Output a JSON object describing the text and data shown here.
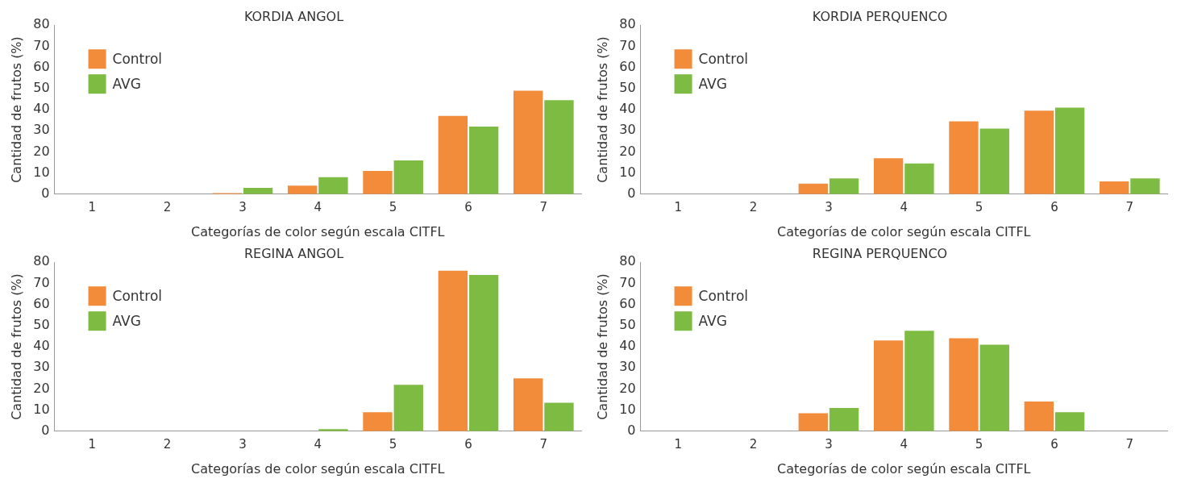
{
  "chart_data": [
    {
      "type": "bar",
      "title": "KORDIA ANGOL",
      "xlabel": "Categorías de color según escala CITFL",
      "ylabel": "Cantidad de frutos (%)",
      "categories": [
        "1",
        "2",
        "3",
        "4",
        "5",
        "6",
        "7"
      ],
      "series": [
        {
          "name": "Control",
          "color": "#f28c3b",
          "values": [
            0,
            0,
            0.5,
            4,
            11,
            37,
            49
          ]
        },
        {
          "name": "AVG",
          "color": "#7dbb42",
          "values": [
            0,
            0,
            3,
            8,
            16,
            32,
            44.5
          ]
        }
      ],
      "ylim": [
        0,
        80
      ],
      "yticks": [
        0,
        10,
        20,
        30,
        40,
        50,
        60,
        70,
        80
      ],
      "grid": false,
      "legend": "top left"
    },
    {
      "type": "bar",
      "title": "KORDIA PERQUENCO",
      "xlabel": "Categorías de color según escala CITFL",
      "ylabel": "Cantidad de frutos (%)",
      "categories": [
        "1",
        "2",
        "3",
        "4",
        "5",
        "6",
        "7"
      ],
      "series": [
        {
          "name": "Control",
          "color": "#f28c3b",
          "values": [
            0,
            0,
            5,
            17,
            34.5,
            39.5,
            6
          ]
        },
        {
          "name": "AVG",
          "color": "#7dbb42",
          "values": [
            0,
            0,
            7.5,
            14.5,
            31,
            41,
            7.5
          ]
        }
      ],
      "ylim": [
        0,
        80
      ],
      "yticks": [
        0,
        10,
        20,
        30,
        40,
        50,
        60,
        70,
        80
      ],
      "grid": false,
      "legend": "top left"
    },
    {
      "type": "bar",
      "title": "REGINA ANGOL",
      "xlabel": "Categorías de color según escala CITFL",
      "ylabel": "Cantidad de frutos (%)",
      "categories": [
        "1",
        "2",
        "3",
        "4",
        "5",
        "6",
        "7"
      ],
      "series": [
        {
          "name": "Control",
          "color": "#f28c3b",
          "values": [
            0,
            0,
            0,
            0,
            9,
            76,
            25
          ]
        },
        {
          "name": "AVG",
          "color": "#7dbb42",
          "values": [
            0,
            0,
            0,
            1,
            22,
            74,
            13.5
          ]
        }
      ],
      "ylim": [
        0,
        80
      ],
      "yticks": [
        0,
        10,
        20,
        30,
        40,
        50,
        60,
        70,
        80
      ],
      "grid": false,
      "legend": "top left"
    },
    {
      "type": "bar",
      "title": "REGINA PERQUENCO",
      "xlabel": "Categorías de color según escala CITFL",
      "ylabel": "Cantidad de frutos (%)",
      "categories": [
        "1",
        "2",
        "3",
        "4",
        "5",
        "6",
        "7"
      ],
      "series": [
        {
          "name": "Control",
          "color": "#f28c3b",
          "values": [
            0,
            0,
            8.5,
            43,
            44,
            14,
            0
          ]
        },
        {
          "name": "AVG",
          "color": "#7dbb42",
          "values": [
            0,
            0,
            11,
            47.5,
            41,
            9,
            0
          ]
        }
      ],
      "ylim": [
        0,
        80
      ],
      "yticks": [
        0,
        10,
        20,
        30,
        40,
        50,
        60,
        70,
        80
      ],
      "grid": false,
      "legend": "top left"
    }
  ]
}
